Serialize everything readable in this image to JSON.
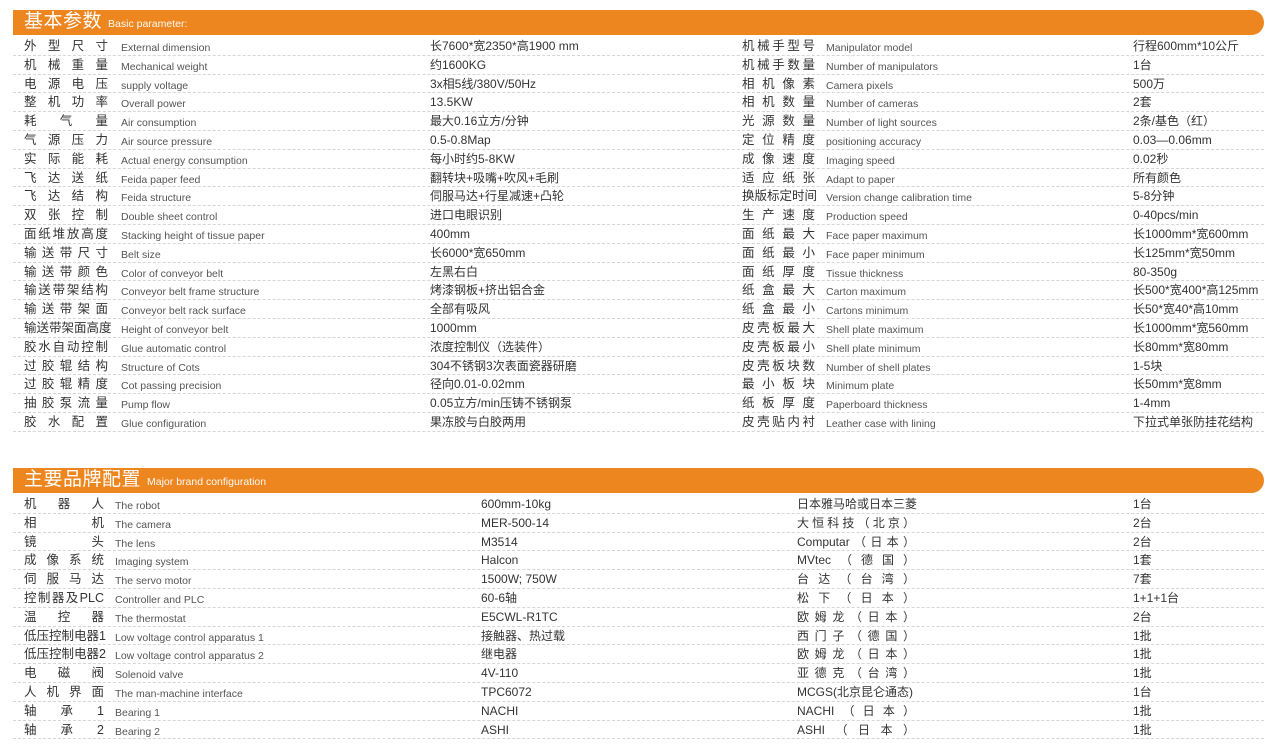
{
  "basic": {
    "title_cn": "基本参数",
    "title_en": "Basic parameter:",
    "left": [
      {
        "cn": "外型尺寸",
        "en": "External dimension",
        "value": "长7600*宽2350*高1900 mm"
      },
      {
        "cn": "机械重量",
        "en": "Mechanical weight",
        "value": "约1600KG"
      },
      {
        "cn": "电源电压",
        "en": "supply voltage",
        "value": "3x相5线/380V/50Hz"
      },
      {
        "cn": "整机功率",
        "en": "Overall power",
        "value": "13.5KW"
      },
      {
        "cn": "耗 气 量",
        "en": "Air consumption",
        "value": "最大0.16立方/分钟"
      },
      {
        "cn": "气源压力",
        "en": "Air source pressure",
        "value": "0.5-0.8Map"
      },
      {
        "cn": "实际能耗",
        "en": "Actual energy consumption",
        "value": "每小时约5-8KW"
      },
      {
        "cn": "飞达送纸",
        "en": "Feida paper feed",
        "value": "翻转块+吸嘴+吹风+毛刷"
      },
      {
        "cn": "飞达结构",
        "en": "Feida structure",
        "value": "伺服马达+行星减速+凸轮"
      },
      {
        "cn": "双张控制",
        "en": "Double sheet control",
        "value": "进口电眼识别"
      },
      {
        "cn": "面纸堆放高度",
        "en": "Stacking height of tissue paper",
        "value": "400mm"
      },
      {
        "cn": "输送带尺寸",
        "en": "Belt size",
        "value": "长6000*宽650mm"
      },
      {
        "cn": "输送带颜色",
        "en": "Color of conveyor belt",
        "value": "左黑右白"
      },
      {
        "cn": "输送带架结构",
        "en": "Conveyor belt frame structure",
        "value": "烤漆钢板+挤出铝合金"
      },
      {
        "cn": "输送带架面",
        "en": "Conveyor belt rack surface",
        "value": "全部有吸风"
      },
      {
        "cn": "输送带架面高度",
        "en": "Height of conveyor belt",
        "value": "1000mm"
      },
      {
        "cn": "胶水自动控制",
        "en": "Glue automatic control",
        "value": "浓度控制仪（选装件）"
      },
      {
        "cn": "过胶辊结构",
        "en": "Structure of Cots",
        "value": "304不锈钢3次表面瓷器研磨"
      },
      {
        "cn": "过胶辊精度",
        "en": "Cot passing precision",
        "value": "径向0.01-0.02mm"
      },
      {
        "cn": "抽胶泵流量",
        "en": "Pump flow",
        "value": "0.05立方/min压铸不锈钢泵"
      },
      {
        "cn": "胶水配置",
        "en": "Glue configuration",
        "value": "果冻胶与白胶两用"
      }
    ],
    "right": [
      {
        "cn": "机械手型号",
        "en": "Manipulator model",
        "value": "行程600mm*10公斤"
      },
      {
        "cn": "机械手数量",
        "en": "Number of manipulators",
        "value": "1台"
      },
      {
        "cn": "相机像素",
        "en": "Camera pixels",
        "value": "500万"
      },
      {
        "cn": "相机数量",
        "en": "Number of cameras",
        "value": "2套"
      },
      {
        "cn": "光源数量",
        "en": "Number of light sources",
        "value": "2条/基色（红）"
      },
      {
        "cn": "定位精度",
        "en": "positioning accuracy",
        "value": "0.03—0.06mm"
      },
      {
        "cn": "成像速度",
        "en": "Imaging speed",
        "value": "0.02秒"
      },
      {
        "cn": "适应纸张",
        "en": "Adapt to paper",
        "value": "所有颜色"
      },
      {
        "cn": "换版标定时间",
        "en": "Version change calibration time",
        "value": "5-8分钟"
      },
      {
        "cn": "生产速度",
        "en": "Production speed",
        "value": "0-40pcs/min"
      },
      {
        "cn": "面纸最大",
        "en": "Face paper maximum",
        "value": "长1000mm*宽600mm"
      },
      {
        "cn": "面纸最小",
        "en": "Face paper minimum",
        "value": "长125mm*宽50mm"
      },
      {
        "cn": "面纸厚度",
        "en": "Tissue thickness",
        "value": "80-350g"
      },
      {
        "cn": "纸盒最大",
        "en": "Carton maximum",
        "value": "长500*宽400*高125mm"
      },
      {
        "cn": "纸盒最小",
        "en": "Cartons minimum",
        "value": "长50*宽40*高10mm"
      },
      {
        "cn": "皮壳板最大",
        "en": "Shell plate maximum",
        "value": "长1000mm*宽560mm"
      },
      {
        "cn": "皮壳板最小",
        "en": "Shell plate minimum",
        "value": "长80mm*宽80mm"
      },
      {
        "cn": "皮壳板块数",
        "en": "Number of shell plates",
        "value": "1-5块"
      },
      {
        "cn": "最小板块",
        "en": "Minimum plate",
        "value": "长50mm*宽8mm"
      },
      {
        "cn": "纸板厚度",
        "en": "Paperboard thickness",
        "value": "1-4mm"
      },
      {
        "cn": "皮壳贴内衬",
        "en": "Leather case with lining",
        "value": "下拉式单张防挂花结构"
      }
    ]
  },
  "brands": {
    "title_cn": "主要品牌配置",
    "title_en": "Major brand configuration",
    "rows": [
      {
        "cn": "机 器 人",
        "en": "The robot",
        "model": "600mm-10kg",
        "brand": "日本雅马哈或日本三菱",
        "qty": "1台"
      },
      {
        "cn": "相 机",
        "en": "The camera",
        "model": "MER-500-14",
        "brand": "大恒科技（北京）",
        "qty": "2台"
      },
      {
        "cn": "镜 头",
        "en": "The lens",
        "model": "M3514",
        "brand": "Computar（日本）",
        "qty": "2台"
      },
      {
        "cn": "成像系统",
        "en": "Imaging system",
        "model": "Halcon",
        "brand": "MVtec（德国）",
        "qty": "1套"
      },
      {
        "cn": "伺服马达",
        "en": "The servo motor",
        "model": "1500W; 750W",
        "brand": "台达（台湾）",
        "qty": "7套"
      },
      {
        "cn": "控制器及PLC",
        "en": "Controller and PLC",
        "model": "60-6轴",
        "brand": "松下（日本）",
        "qty": "1+1+1台"
      },
      {
        "cn": "温 控 器",
        "en": "The thermostat",
        "model": "E5CWL-R1TC",
        "brand": "欧姆龙（日本）",
        "qty": "2台"
      },
      {
        "cn": "低压控制电器1",
        "en": "Low voltage control apparatus 1",
        "model": "接触器、热过载",
        "brand": "西门子（德国）",
        "qty": "1批"
      },
      {
        "cn": "低压控制电器2",
        "en": "Low voltage control apparatus 2",
        "model": "继电器",
        "brand": "欧姆龙（日本）",
        "qty": "1批"
      },
      {
        "cn": "电 磁 阀",
        "en": "Solenoid valve",
        "model": "4V-110",
        "brand": "亚德克（台湾）",
        "qty": "1批"
      },
      {
        "cn": "人机界面",
        "en": "The man-machine interface",
        "model": "TPC6072",
        "brand": "MCGS(北京昆仑通态)",
        "qty": "1台"
      },
      {
        "cn": "轴 承 1",
        "en": "Bearing 1",
        "model": "NACHI",
        "brand": "NACHI（日本）",
        "qty": "1批"
      },
      {
        "cn": "轴 承 2",
        "en": "Bearing 2",
        "model": "ASHI",
        "brand": "ASHI（日本）",
        "qty": "1批"
      }
    ]
  },
  "colors": {
    "accent": "#ee8620",
    "divider": "#d6d6d6",
    "text": "#333333"
  }
}
